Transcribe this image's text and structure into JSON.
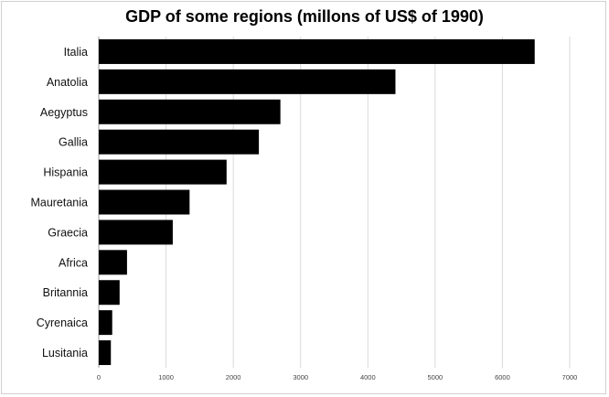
{
  "chart_data": {
    "type": "bar",
    "orientation": "horizontal",
    "title": "GDP of some regions (millons of US$ of 1990)",
    "xlabel": "",
    "ylabel": "",
    "categories": [
      "Italia",
      "Anatolia",
      "Aegyptus",
      "Gallia",
      "Hispania",
      "Mauretania",
      "Graecia",
      "Africa",
      "Britannia",
      "Cyrenaica",
      "Lusitania"
    ],
    "values": [
      6480,
      4410,
      2700,
      2380,
      1900,
      1350,
      1100,
      420,
      310,
      200,
      180
    ],
    "xlim": [
      0,
      7000
    ],
    "xticks": [
      "0",
      "1000",
      "2000",
      "3000",
      "4000",
      "5000",
      "6000",
      "7000"
    ],
    "grid": "vertical",
    "legend": "none",
    "bar_color": "#000000",
    "grid_color": "#d9d9d9"
  }
}
